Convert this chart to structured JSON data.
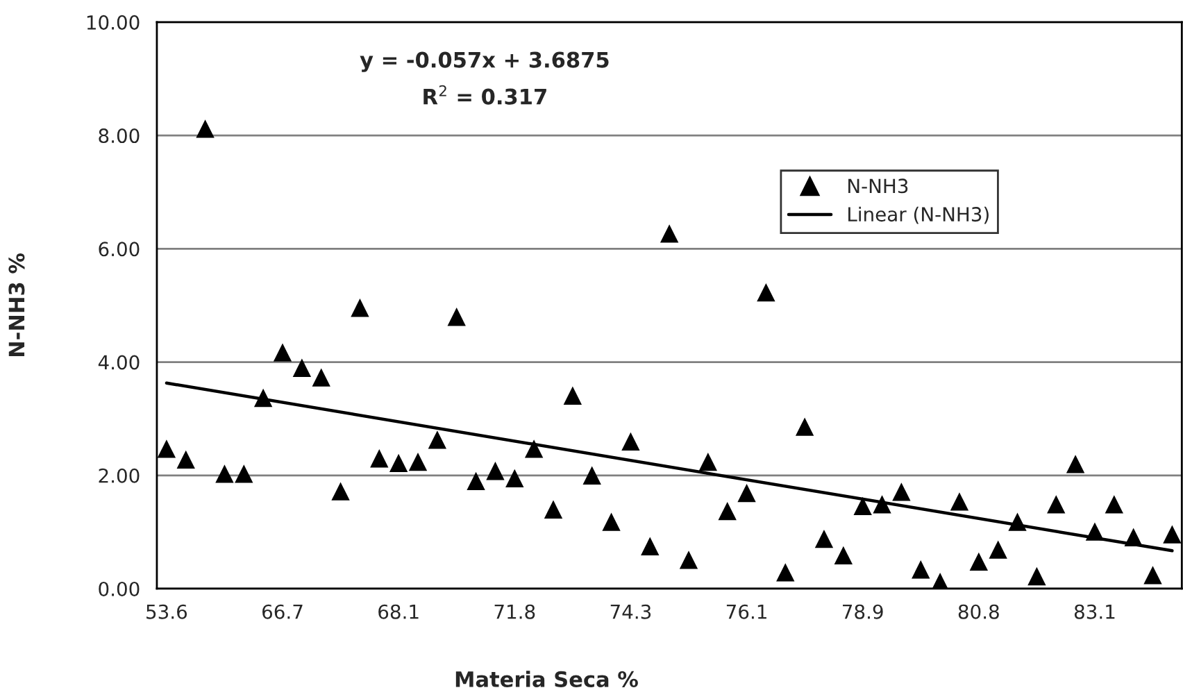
{
  "chart_data": {
    "type": "scatter",
    "xlabel": "Materia Seca %",
    "ylabel": "N-NH3 %",
    "categories": [
      "53.6",
      null,
      null,
      null,
      null,
      null,
      "66.7",
      null,
      null,
      null,
      null,
      null,
      "68.1",
      null,
      null,
      null,
      null,
      null,
      "71.8",
      null,
      null,
      null,
      null,
      null,
      "74.3",
      null,
      null,
      null,
      null,
      null,
      "76.1",
      null,
      null,
      null,
      null,
      null,
      "78.9",
      null,
      null,
      null,
      null,
      null,
      "80.8",
      null,
      null,
      null,
      null,
      null,
      "83.1",
      null,
      null,
      null,
      null
    ],
    "series": [
      {
        "name": "N-NH3",
        "color": "#000000",
        "marker": "triangle",
        "values": [
          2.47,
          2.28,
          8.12,
          2.03,
          2.03,
          3.37,
          4.17,
          3.9,
          3.73,
          1.72,
          4.96,
          2.3,
          2.22,
          2.24,
          2.63,
          4.8,
          1.9,
          2.08,
          1.95,
          2.47,
          1.4,
          3.41,
          2.0,
          1.18,
          2.6,
          0.75,
          6.27,
          0.51,
          2.24,
          1.37,
          1.69,
          5.23,
          0.29,
          2.86,
          0.88,
          0.59,
          1.46,
          1.49,
          1.71,
          0.34,
          0.12,
          1.54,
          0.48,
          0.69,
          1.18,
          0.22,
          1.49,
          2.2,
          1.01,
          1.49,
          0.91,
          0.24,
          0.96
        ]
      },
      {
        "name": "Linear (N-NH3)",
        "type": "line",
        "color": "#000000",
        "line_style": "solid",
        "values": [
          3.63,
          null,
          null,
          null,
          null,
          null,
          null,
          null,
          null,
          null,
          null,
          null,
          null,
          null,
          null,
          null,
          null,
          null,
          null,
          null,
          null,
          null,
          null,
          null,
          null,
          null,
          null,
          null,
          null,
          null,
          null,
          null,
          null,
          null,
          null,
          null,
          null,
          null,
          null,
          null,
          null,
          null,
          null,
          null,
          null,
          null,
          null,
          null,
          null,
          null,
          null,
          null,
          0.67
        ]
      }
    ],
    "ylim": [
      0,
      10
    ],
    "yticks": [
      {
        "value": 0,
        "label": "0.00"
      },
      {
        "value": 2,
        "label": "2.00"
      },
      {
        "value": 4,
        "label": "4.00"
      },
      {
        "value": 6,
        "label": "6.00"
      },
      {
        "value": 8,
        "label": "8.00"
      },
      {
        "value": 10,
        "label": "10.00"
      }
    ],
    "grid": "y",
    "legend": "top right",
    "annotations": [
      "y = -0.057x + 3.6875",
      "R$^{2}$ = 0.317"
    ]
  }
}
